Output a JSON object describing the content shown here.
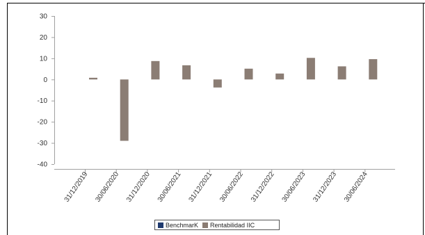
{
  "chart_data": {
    "type": "bar",
    "categories": [
      "31/12/2019",
      "30/06/2020",
      "31/12/2020",
      "30/06/2021",
      "31/12/2021",
      "30/06/2022",
      "31/12/2022",
      "30/06/2023",
      "31/12/2023",
      "30/06/2024"
    ],
    "series": [
      {
        "name": "BenchmarK",
        "color": "#1f3a6e",
        "values": [
          null,
          null,
          null,
          null,
          null,
          null,
          null,
          null,
          null,
          null
        ]
      },
      {
        "name": "Rentabilidad IIC",
        "color": "#8b7d74",
        "values": [
          0.8,
          -29,
          8.7,
          6.7,
          -3.8,
          5.1,
          2.8,
          10.2,
          6.2,
          9.6
        ]
      }
    ],
    "y_ticks": [
      "30",
      "20",
      "10",
      "0",
      "-10",
      "-20",
      "-30",
      "-40"
    ],
    "ylim": [
      -40,
      30
    ],
    "title": "",
    "xlabel": "",
    "ylabel": "",
    "grid": false,
    "legend_position": "bottom-center"
  }
}
